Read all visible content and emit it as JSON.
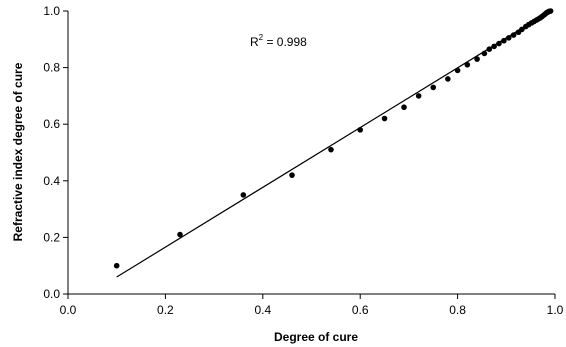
{
  "chart_data": {
    "type": "scatter",
    "xlabel": "Degree of cure",
    "ylabel": "Refractive index degree of cure",
    "xlim": [
      0.0,
      1.0
    ],
    "ylim": [
      0.0,
      1.0
    ],
    "x_ticks": [
      "0.0",
      "0.2",
      "0.4",
      "0.6",
      "0.8",
      "1.0"
    ],
    "y_ticks": [
      "0.0",
      "0.2",
      "0.4",
      "0.6",
      "0.8",
      "1.0"
    ],
    "grid": false,
    "annotation": {
      "prefix": "R",
      "superscript": "2",
      "suffix": " = 0.998"
    },
    "points": [
      {
        "x": 0.1,
        "y": 0.1
      },
      {
        "x": 0.23,
        "y": 0.21
      },
      {
        "x": 0.36,
        "y": 0.35
      },
      {
        "x": 0.46,
        "y": 0.42
      },
      {
        "x": 0.54,
        "y": 0.51
      },
      {
        "x": 0.6,
        "y": 0.58
      },
      {
        "x": 0.65,
        "y": 0.62
      },
      {
        "x": 0.69,
        "y": 0.66
      },
      {
        "x": 0.72,
        "y": 0.7
      },
      {
        "x": 0.75,
        "y": 0.73
      },
      {
        "x": 0.78,
        "y": 0.76
      },
      {
        "x": 0.8,
        "y": 0.79
      },
      {
        "x": 0.82,
        "y": 0.81
      },
      {
        "x": 0.84,
        "y": 0.83
      },
      {
        "x": 0.855,
        "y": 0.85
      },
      {
        "x": 0.865,
        "y": 0.865
      },
      {
        "x": 0.875,
        "y": 0.875
      },
      {
        "x": 0.885,
        "y": 0.885
      },
      {
        "x": 0.895,
        "y": 0.895
      },
      {
        "x": 0.905,
        "y": 0.905
      },
      {
        "x": 0.915,
        "y": 0.915
      },
      {
        "x": 0.925,
        "y": 0.925
      },
      {
        "x": 0.932,
        "y": 0.935
      },
      {
        "x": 0.94,
        "y": 0.945
      },
      {
        "x": 0.946,
        "y": 0.952
      },
      {
        "x": 0.952,
        "y": 0.958
      },
      {
        "x": 0.957,
        "y": 0.963
      },
      {
        "x": 0.962,
        "y": 0.968
      },
      {
        "x": 0.966,
        "y": 0.972
      },
      {
        "x": 0.97,
        "y": 0.976
      },
      {
        "x": 0.973,
        "y": 0.98
      },
      {
        "x": 0.976,
        "y": 0.984
      },
      {
        "x": 0.979,
        "y": 0.988
      },
      {
        "x": 0.981,
        "y": 0.991
      },
      {
        "x": 0.983,
        "y": 0.994
      },
      {
        "x": 0.985,
        "y": 0.996
      },
      {
        "x": 0.987,
        "y": 0.998
      },
      {
        "x": 0.989,
        "y": 0.999
      },
      {
        "x": 0.991,
        "y": 1.0
      }
    ],
    "fit_line": {
      "x": [
        0.1,
        0.99
      ],
      "y": [
        0.06,
        1.0
      ]
    }
  }
}
